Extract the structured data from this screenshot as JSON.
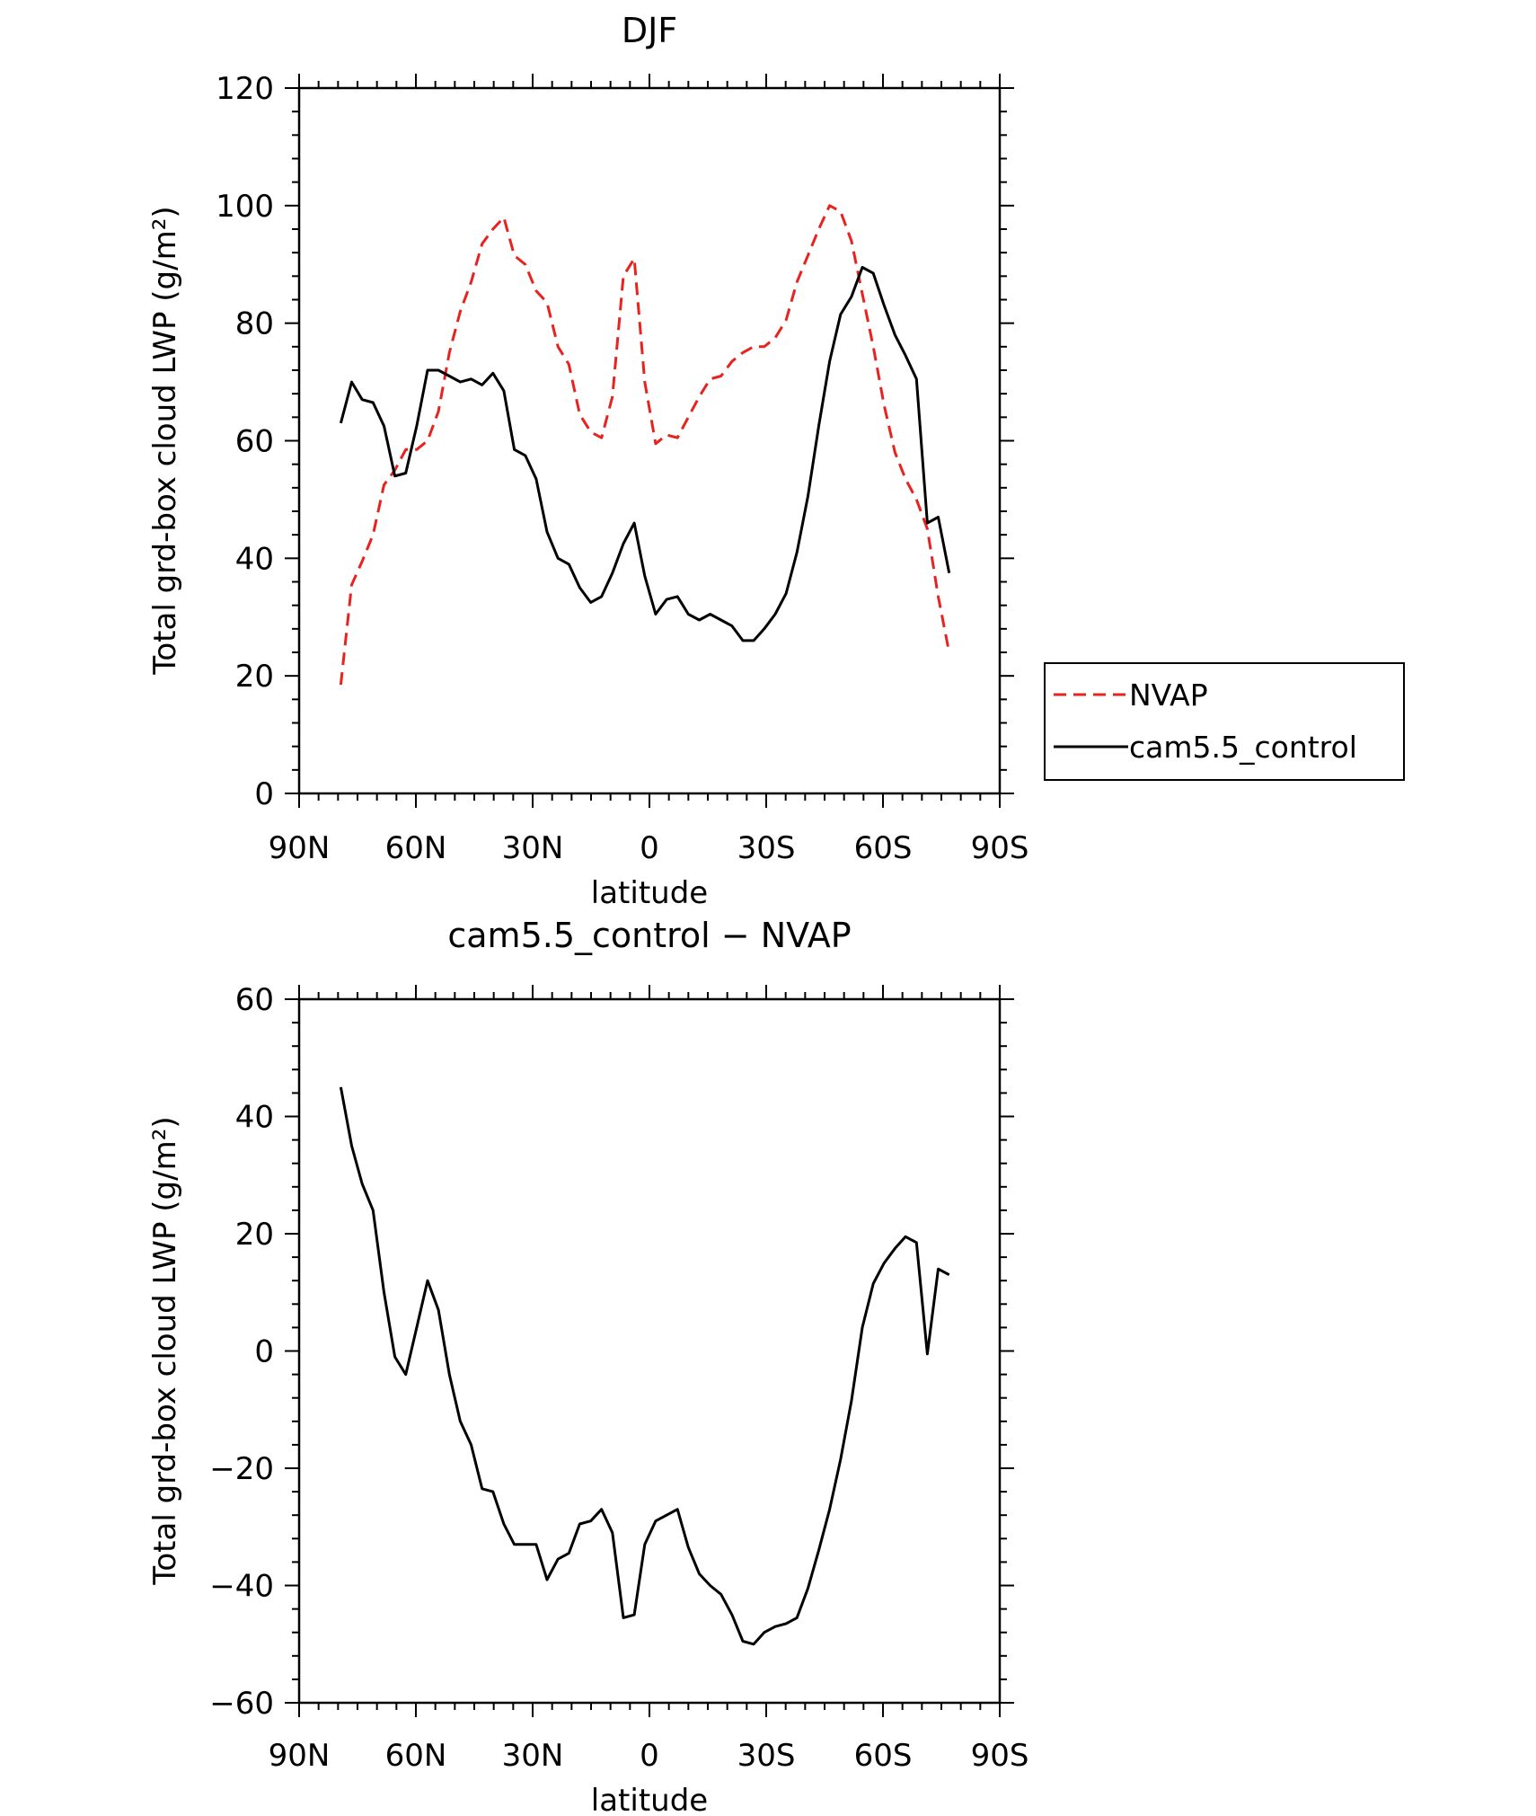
{
  "chart_data": [
    {
      "type": "line",
      "title": "DJF",
      "xlabel": "latitude",
      "ylabel": "Total grd-box cloud LWP (g/m²)",
      "xlim": [
        90,
        -90
      ],
      "ylim": [
        0,
        120
      ],
      "x_ticks": [
        90,
        60,
        30,
        0,
        -30,
        -60,
        -90
      ],
      "x_tick_labels": [
        "90N",
        "60N",
        "30N",
        "0",
        "30S",
        "60S",
        "90S"
      ],
      "y_ticks": [
        0,
        20,
        40,
        60,
        80,
        100,
        120
      ],
      "y_tick_labels": [
        "0",
        "20",
        "40",
        "60",
        "80",
        "100",
        "120"
      ],
      "legend": {
        "position": "right",
        "entries": [
          {
            "label": "NVAP",
            "color": "#e8231f",
            "style": "dashed"
          },
          {
            "label": "cam5.5_control",
            "color": "#000000",
            "style": "solid"
          }
        ]
      },
      "series": [
        {
          "name": "NVAP",
          "color": "#e8231f",
          "style": "dashed",
          "x": [
            79.3,
            76.5,
            73.8,
            71.0,
            68.2,
            65.4,
            62.6,
            59.8,
            57.0,
            54.2,
            51.4,
            48.6,
            45.8,
            43.0,
            40.2,
            37.4,
            34.7,
            31.9,
            29.1,
            26.3,
            23.5,
            20.7,
            17.9,
            15.1,
            12.3,
            9.5,
            6.7,
            3.9,
            1.2,
            -1.6,
            -4.4,
            -7.2,
            -10.0,
            -12.8,
            -15.6,
            -18.4,
            -21.2,
            -24.0,
            -26.8,
            -29.5,
            -32.3,
            -35.1,
            -37.9,
            -40.7,
            -43.5,
            -46.3,
            -49.1,
            -51.9,
            -54.7,
            -57.5,
            -60.3,
            -63.1,
            -65.8,
            -68.6,
            -71.4,
            -74.2,
            -77.0
          ],
          "y": [
            18.5,
            35.5,
            39.5,
            44.0,
            52.5,
            55.0,
            58.5,
            58.5,
            60.0,
            65.0,
            75.0,
            82.0,
            87.0,
            93.5,
            96.0,
            98.0,
            91.5,
            90.0,
            85.5,
            83.5,
            76.0,
            73.0,
            64.5,
            61.5,
            60.5,
            67.5,
            88.0,
            91.0,
            70.0,
            59.5,
            61.0,
            60.5,
            64.0,
            67.5,
            70.5,
            71.0,
            73.5,
            75.0,
            76.0,
            76.0,
            77.5,
            80.5,
            87.0,
            91.5,
            96.0,
            100.0,
            99.0,
            94.0,
            85.0,
            76.0,
            66.0,
            58.0,
            53.5,
            50.0,
            45.0,
            33.5,
            24.0
          ]
        },
        {
          "name": "cam5.5_control",
          "color": "#000000",
          "style": "solid",
          "x": [
            79.3,
            76.5,
            73.8,
            71.0,
            68.2,
            65.4,
            62.6,
            59.8,
            57.0,
            54.2,
            51.4,
            48.6,
            45.8,
            43.0,
            40.2,
            37.4,
            34.7,
            31.9,
            29.1,
            26.3,
            23.5,
            20.7,
            17.9,
            15.1,
            12.3,
            9.5,
            6.7,
            3.9,
            1.2,
            -1.6,
            -4.4,
            -7.2,
            -10.0,
            -12.8,
            -15.6,
            -18.4,
            -21.2,
            -24.0,
            -26.8,
            -29.5,
            -32.3,
            -35.1,
            -37.9,
            -40.7,
            -43.5,
            -46.3,
            -49.1,
            -51.9,
            -54.7,
            -57.5,
            -60.3,
            -63.1,
            -65.8,
            -68.6,
            -71.4,
            -74.2,
            -77.0
          ],
          "y": [
            63.0,
            70.0,
            67.0,
            66.5,
            62.5,
            54.0,
            54.5,
            62.5,
            72.0,
            72.0,
            71.0,
            70.0,
            70.5,
            69.5,
            71.5,
            68.5,
            58.5,
            57.5,
            53.5,
            44.5,
            40.0,
            39.0,
            35.0,
            32.5,
            33.5,
            37.5,
            42.5,
            46.0,
            37.0,
            30.5,
            33.0,
            33.5,
            30.5,
            29.5,
            30.5,
            29.5,
            28.5,
            26.0,
            26.0,
            28.0,
            30.5,
            34.0,
            41.0,
            50.5,
            62.5,
            73.5,
            81.5,
            84.5,
            89.5,
            88.5,
            83.0,
            78.0,
            74.5,
            70.5,
            46.0,
            47.0,
            37.5
          ]
        }
      ]
    },
    {
      "type": "line",
      "title": "cam5.5_control − NVAP",
      "xlabel": "latitude",
      "ylabel": "Total grd-box cloud LWP (g/m²)",
      "xlim": [
        90,
        -90
      ],
      "ylim": [
        -60,
        60
      ],
      "x_ticks": [
        90,
        60,
        30,
        0,
        -30,
        -60,
        -90
      ],
      "x_tick_labels": [
        "90N",
        "60N",
        "30N",
        "0",
        "30S",
        "60S",
        "90S"
      ],
      "y_ticks": [
        -60,
        -40,
        -20,
        0,
        20,
        40,
        60
      ],
      "y_tick_labels": [
        "−60",
        "−40",
        "−20",
        "0",
        "20",
        "40",
        "60"
      ],
      "series": [
        {
          "color": "#000000",
          "style": "solid",
          "x": [
            79.3,
            76.5,
            73.8,
            71.0,
            68.2,
            65.4,
            62.6,
            59.8,
            57.0,
            54.2,
            51.4,
            48.6,
            45.8,
            43.0,
            40.2,
            37.4,
            34.7,
            31.9,
            29.1,
            26.3,
            23.5,
            20.7,
            17.9,
            15.1,
            12.3,
            9.5,
            6.7,
            3.9,
            1.2,
            -1.6,
            -4.4,
            -7.2,
            -10.0,
            -12.8,
            -15.6,
            -18.4,
            -21.2,
            -24.0,
            -26.8,
            -29.5,
            -32.3,
            -35.1,
            -37.9,
            -40.7,
            -43.5,
            -46.3,
            -49.1,
            -51.9,
            -54.7,
            -57.5,
            -60.3,
            -63.1,
            -65.8,
            -68.6,
            -71.4,
            -74.2,
            -77.0
          ],
          "y": [
            45.0,
            35.0,
            28.5,
            24.0,
            10.0,
            -1.0,
            -4.0,
            4.0,
            12.0,
            7.0,
            -4.0,
            -12.0,
            -16.0,
            -23.5,
            -24.0,
            -29.5,
            -33.0,
            -33.0,
            -33.0,
            -39.0,
            -35.5,
            -34.5,
            -29.5,
            -29.0,
            -27.0,
            -31.0,
            -45.5,
            -45.0,
            -33.0,
            -29.0,
            -28.0,
            -27.0,
            -33.5,
            -38.0,
            -40.0,
            -41.5,
            -45.0,
            -49.5,
            -50.0,
            -48.0,
            -47.0,
            -46.5,
            -45.5,
            -40.5,
            -34.0,
            -27.0,
            -18.5,
            -8.5,
            4.0,
            11.5,
            15.0,
            17.5,
            19.5,
            18.5,
            -0.5,
            14.0,
            13.0
          ]
        }
      ]
    }
  ]
}
